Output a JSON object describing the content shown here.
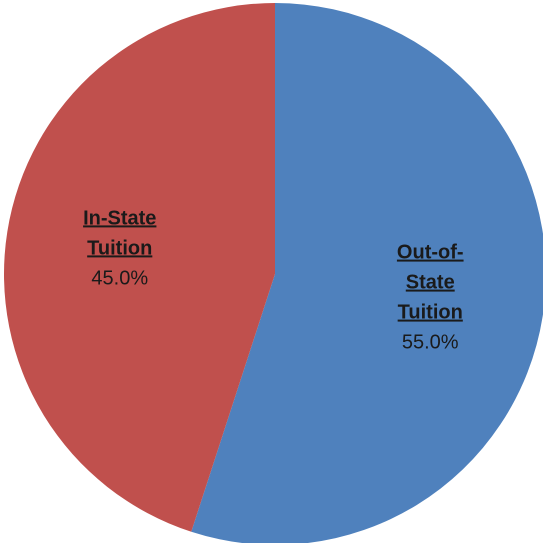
{
  "chart_data": {
    "type": "pie",
    "title": "",
    "slices": [
      {
        "label_lines": [
          "Out-of-",
          "State",
          "Tuition"
        ],
        "label": "Out-of-State Tuition",
        "value": 55.0,
        "value_label": "55.0%",
        "color": "#4F81BD"
      },
      {
        "label_lines": [
          "In-State",
          "Tuition"
        ],
        "label": "In-State Tuition",
        "value": 45.0,
        "value_label": "45.0%",
        "color": "#C0504D"
      }
    ],
    "start_angle_deg": 0,
    "direction": "clockwise",
    "legend": "none"
  }
}
